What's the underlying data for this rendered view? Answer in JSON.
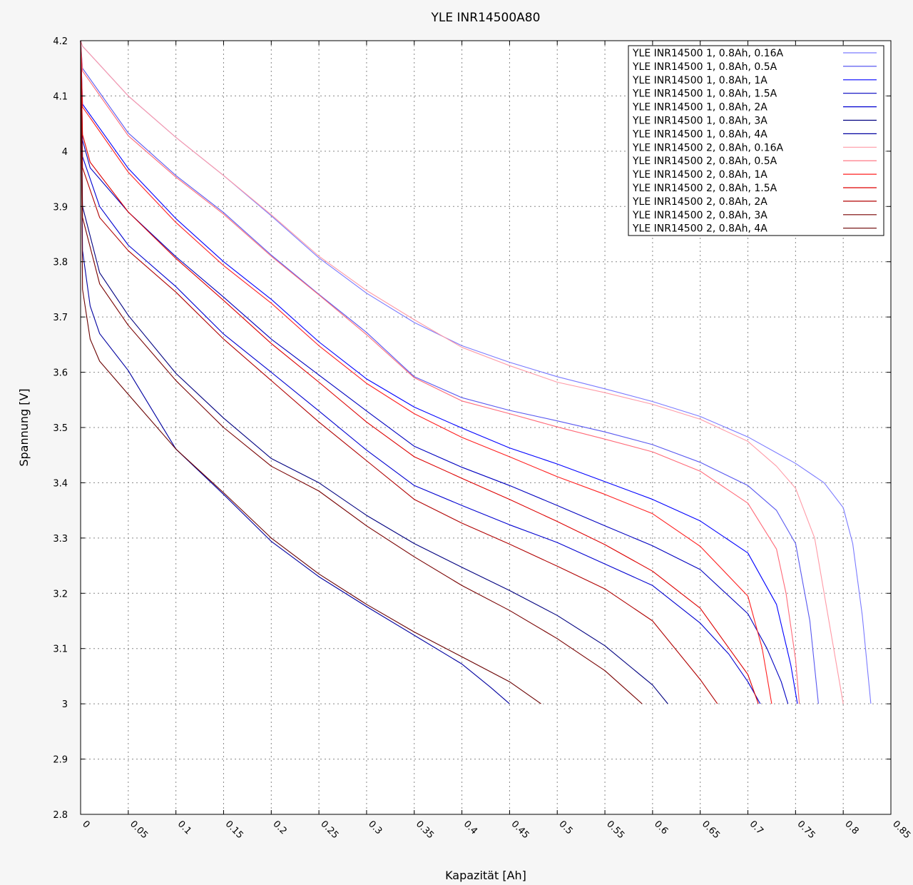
{
  "chart_data": {
    "type": "line",
    "title": "YLE INR14500A80",
    "xlabel": "Kapazität [Ah]",
    "ylabel": "Spannung [V]",
    "xlim": [
      0,
      0.85
    ],
    "ylim": [
      2.8,
      4.2
    ],
    "grid": true,
    "legend_position": "top-right",
    "x_ticks": [
      "0",
      "0.05",
      "0.1",
      "0.15",
      "0.2",
      "0.25",
      "0.3",
      "0.35",
      "0.4",
      "0.45",
      "0.5",
      "0.55",
      "0.6",
      "0.65",
      "0.7",
      "0.75",
      "0.8",
      "0.85"
    ],
    "y_ticks": [
      "2.8",
      "2.9",
      "3",
      "3.1",
      "3.2",
      "3.3",
      "3.4",
      "3.5",
      "3.6",
      "3.7",
      "3.8",
      "3.9",
      "4",
      "4.1",
      "4.2"
    ],
    "series": [
      {
        "name": "YLE INR14500 1, 0.8Ah, 0.16A",
        "color": "#7a7aff",
        "points": [
          [
            0,
            4.2
          ],
          [
            0.002,
            4.19
          ],
          [
            0.05,
            4.1
          ],
          [
            0.1,
            4.025
          ],
          [
            0.15,
            3.956
          ],
          [
            0.2,
            3.883
          ],
          [
            0.25,
            3.807
          ],
          [
            0.3,
            3.743
          ],
          [
            0.35,
            3.69
          ],
          [
            0.4,
            3.648
          ],
          [
            0.45,
            3.618
          ],
          [
            0.5,
            3.592
          ],
          [
            0.55,
            3.57
          ],
          [
            0.6,
            3.547
          ],
          [
            0.65,
            3.52
          ],
          [
            0.7,
            3.483
          ],
          [
            0.75,
            3.435
          ],
          [
            0.78,
            3.4
          ],
          [
            0.8,
            3.355
          ],
          [
            0.81,
            3.29
          ],
          [
            0.82,
            3.16
          ],
          [
            0.829,
            3.0
          ]
        ]
      },
      {
        "name": "YLE INR14500 1, 0.8Ah, 0.5A",
        "color": "#5858f0",
        "points": [
          [
            0,
            4.2
          ],
          [
            0.002,
            4.15
          ],
          [
            0.05,
            4.033
          ],
          [
            0.1,
            3.956
          ],
          [
            0.15,
            3.889
          ],
          [
            0.2,
            3.812
          ],
          [
            0.25,
            3.741
          ],
          [
            0.3,
            3.672
          ],
          [
            0.35,
            3.592
          ],
          [
            0.4,
            3.554
          ],
          [
            0.45,
            3.531
          ],
          [
            0.5,
            3.512
          ],
          [
            0.55,
            3.492
          ],
          [
            0.6,
            3.469
          ],
          [
            0.65,
            3.437
          ],
          [
            0.7,
            3.395
          ],
          [
            0.73,
            3.35
          ],
          [
            0.75,
            3.29
          ],
          [
            0.765,
            3.15
          ],
          [
            0.774,
            3.0
          ]
        ]
      },
      {
        "name": "YLE INR14500 1, 0.8Ah, 1A",
        "color": "#0000ff",
        "points": [
          [
            0,
            4.2
          ],
          [
            0.002,
            4.085
          ],
          [
            0.05,
            3.969
          ],
          [
            0.1,
            3.878
          ],
          [
            0.15,
            3.8
          ],
          [
            0.2,
            3.732
          ],
          [
            0.25,
            3.655
          ],
          [
            0.3,
            3.588
          ],
          [
            0.35,
            3.537
          ],
          [
            0.4,
            3.499
          ],
          [
            0.45,
            3.463
          ],
          [
            0.5,
            3.434
          ],
          [
            0.55,
            3.402
          ],
          [
            0.6,
            3.37
          ],
          [
            0.65,
            3.331
          ],
          [
            0.7,
            3.273
          ],
          [
            0.73,
            3.18
          ],
          [
            0.745,
            3.07
          ],
          [
            0.752,
            3.0
          ]
        ]
      },
      {
        "name": "YLE INR14500 1, 0.8Ah, 1.5A",
        "color": "#0000c0",
        "points": [
          [
            0,
            4.2
          ],
          [
            0.002,
            4.02
          ],
          [
            0.01,
            3.97
          ],
          [
            0.05,
            3.89
          ],
          [
            0.1,
            3.809
          ],
          [
            0.15,
            3.736
          ],
          [
            0.2,
            3.66
          ],
          [
            0.25,
            3.595
          ],
          [
            0.3,
            3.53
          ],
          [
            0.35,
            3.466
          ],
          [
            0.4,
            3.428
          ],
          [
            0.45,
            3.395
          ],
          [
            0.5,
            3.359
          ],
          [
            0.55,
            3.322
          ],
          [
            0.6,
            3.286
          ],
          [
            0.65,
            3.243
          ],
          [
            0.7,
            3.163
          ],
          [
            0.72,
            3.1
          ],
          [
            0.735,
            3.04
          ],
          [
            0.742,
            3.0
          ]
        ]
      },
      {
        "name": "YLE INR14500 1, 0.8Ah, 2A",
        "color": "#0000d0",
        "points": [
          [
            0,
            4.2
          ],
          [
            0.002,
            3.99
          ],
          [
            0.02,
            3.9
          ],
          [
            0.05,
            3.83
          ],
          [
            0.1,
            3.755
          ],
          [
            0.15,
            3.669
          ],
          [
            0.2,
            3.6
          ],
          [
            0.25,
            3.53
          ],
          [
            0.3,
            3.459
          ],
          [
            0.35,
            3.395
          ],
          [
            0.4,
            3.359
          ],
          [
            0.45,
            3.324
          ],
          [
            0.5,
            3.292
          ],
          [
            0.55,
            3.253
          ],
          [
            0.6,
            3.214
          ],
          [
            0.65,
            3.146
          ],
          [
            0.68,
            3.09
          ],
          [
            0.7,
            3.04
          ],
          [
            0.713,
            3.0
          ]
        ]
      },
      {
        "name": "YLE INR14500 1, 0.8Ah, 3A",
        "color": "#000080",
        "points": [
          [
            0,
            4.2
          ],
          [
            0.002,
            3.9
          ],
          [
            0.02,
            3.78
          ],
          [
            0.05,
            3.703
          ],
          [
            0.1,
            3.598
          ],
          [
            0.15,
            3.517
          ],
          [
            0.2,
            3.444
          ],
          [
            0.25,
            3.4
          ],
          [
            0.3,
            3.341
          ],
          [
            0.35,
            3.29
          ],
          [
            0.4,
            3.247
          ],
          [
            0.45,
            3.205
          ],
          [
            0.5,
            3.16
          ],
          [
            0.55,
            3.105
          ],
          [
            0.6,
            3.034
          ],
          [
            0.616,
            3.0
          ]
        ]
      },
      {
        "name": "YLE INR14500 1, 0.8Ah, 4A",
        "color": "#0000a0",
        "points": [
          [
            0,
            4.2
          ],
          [
            0.002,
            3.82
          ],
          [
            0.01,
            3.72
          ],
          [
            0.02,
            3.67
          ],
          [
            0.05,
            3.603
          ],
          [
            0.1,
            3.461
          ],
          [
            0.15,
            3.379
          ],
          [
            0.2,
            3.294
          ],
          [
            0.25,
            3.23
          ],
          [
            0.3,
            3.176
          ],
          [
            0.35,
            3.124
          ],
          [
            0.4,
            3.072
          ],
          [
            0.43,
            3.03
          ],
          [
            0.45,
            3.0
          ]
        ]
      },
      {
        "name": "YLE INR14500 2, 0.8Ah, 0.16A",
        "color": "#ff9aa6",
        "points": [
          [
            0,
            4.2
          ],
          [
            0.002,
            4.19
          ],
          [
            0.05,
            4.1
          ],
          [
            0.1,
            4.025
          ],
          [
            0.15,
            3.956
          ],
          [
            0.2,
            3.885
          ],
          [
            0.25,
            3.81
          ],
          [
            0.3,
            3.748
          ],
          [
            0.35,
            3.695
          ],
          [
            0.4,
            3.645
          ],
          [
            0.45,
            3.612
          ],
          [
            0.5,
            3.582
          ],
          [
            0.55,
            3.563
          ],
          [
            0.6,
            3.542
          ],
          [
            0.65,
            3.515
          ],
          [
            0.7,
            3.475
          ],
          [
            0.73,
            3.43
          ],
          [
            0.75,
            3.39
          ],
          [
            0.77,
            3.3
          ],
          [
            0.785,
            3.15
          ],
          [
            0.8,
            3.0
          ]
        ]
      },
      {
        "name": "YLE INR14500 2, 0.8Ah, 0.5A",
        "color": "#ff6a78",
        "points": [
          [
            0,
            4.2
          ],
          [
            0.002,
            4.145
          ],
          [
            0.05,
            4.028
          ],
          [
            0.1,
            3.953
          ],
          [
            0.15,
            3.886
          ],
          [
            0.2,
            3.81
          ],
          [
            0.25,
            3.74
          ],
          [
            0.3,
            3.668
          ],
          [
            0.35,
            3.59
          ],
          [
            0.4,
            3.548
          ],
          [
            0.45,
            3.525
          ],
          [
            0.5,
            3.501
          ],
          [
            0.55,
            3.479
          ],
          [
            0.6,
            3.456
          ],
          [
            0.65,
            3.421
          ],
          [
            0.7,
            3.363
          ],
          [
            0.73,
            3.28
          ],
          [
            0.74,
            3.2
          ],
          [
            0.75,
            3.08
          ],
          [
            0.754,
            3.0
          ]
        ]
      },
      {
        "name": "YLE INR14500 2, 0.8Ah, 1A",
        "color": "#ff2020",
        "points": [
          [
            0,
            4.2
          ],
          [
            0.002,
            4.08
          ],
          [
            0.05,
            3.962
          ],
          [
            0.1,
            3.871
          ],
          [
            0.15,
            3.793
          ],
          [
            0.2,
            3.725
          ],
          [
            0.25,
            3.648
          ],
          [
            0.3,
            3.58
          ],
          [
            0.35,
            3.525
          ],
          [
            0.4,
            3.482
          ],
          [
            0.45,
            3.447
          ],
          [
            0.5,
            3.411
          ],
          [
            0.55,
            3.379
          ],
          [
            0.6,
            3.344
          ],
          [
            0.65,
            3.285
          ],
          [
            0.7,
            3.195
          ],
          [
            0.715,
            3.1
          ],
          [
            0.725,
            3.0
          ]
        ]
      },
      {
        "name": "YLE INR14500 2, 0.8Ah, 1.5A",
        "color": "#dd0000",
        "points": [
          [
            0,
            4.2
          ],
          [
            0.002,
            4.03
          ],
          [
            0.01,
            3.98
          ],
          [
            0.05,
            3.89
          ],
          [
            0.1,
            3.806
          ],
          [
            0.15,
            3.73
          ],
          [
            0.2,
            3.652
          ],
          [
            0.25,
            3.582
          ],
          [
            0.3,
            3.51
          ],
          [
            0.35,
            3.447
          ],
          [
            0.4,
            3.408
          ],
          [
            0.45,
            3.37
          ],
          [
            0.5,
            3.33
          ],
          [
            0.55,
            3.288
          ],
          [
            0.6,
            3.24
          ],
          [
            0.65,
            3.173
          ],
          [
            0.7,
            3.053
          ],
          [
            0.711,
            3.0
          ]
        ]
      },
      {
        "name": "YLE INR14500 2, 0.8Ah, 2A",
        "color": "#b00000",
        "points": [
          [
            0,
            4.2
          ],
          [
            0.002,
            3.97
          ],
          [
            0.02,
            3.88
          ],
          [
            0.05,
            3.82
          ],
          [
            0.1,
            3.745
          ],
          [
            0.15,
            3.66
          ],
          [
            0.2,
            3.585
          ],
          [
            0.25,
            3.51
          ],
          [
            0.3,
            3.44
          ],
          [
            0.35,
            3.37
          ],
          [
            0.4,
            3.327
          ],
          [
            0.45,
            3.289
          ],
          [
            0.5,
            3.249
          ],
          [
            0.55,
            3.208
          ],
          [
            0.6,
            3.15
          ],
          [
            0.65,
            3.044
          ],
          [
            0.668,
            3.0
          ]
        ]
      },
      {
        "name": "YLE INR14500 2, 0.8Ah, 3A",
        "color": "#780000",
        "points": [
          [
            0,
            4.2
          ],
          [
            0.002,
            3.88
          ],
          [
            0.02,
            3.76
          ],
          [
            0.05,
            3.685
          ],
          [
            0.1,
            3.585
          ],
          [
            0.15,
            3.5
          ],
          [
            0.2,
            3.43
          ],
          [
            0.25,
            3.385
          ],
          [
            0.3,
            3.322
          ],
          [
            0.35,
            3.266
          ],
          [
            0.4,
            3.214
          ],
          [
            0.45,
            3.169
          ],
          [
            0.5,
            3.118
          ],
          [
            0.55,
            3.06
          ],
          [
            0.589,
            3.0
          ]
        ]
      },
      {
        "name": "YLE INR14500 2, 0.8Ah, 4A",
        "color": "#6a0000",
        "points": [
          [
            0,
            4.2
          ],
          [
            0.002,
            3.75
          ],
          [
            0.01,
            3.66
          ],
          [
            0.02,
            3.62
          ],
          [
            0.05,
            3.56
          ],
          [
            0.1,
            3.461
          ],
          [
            0.15,
            3.382
          ],
          [
            0.2,
            3.3
          ],
          [
            0.25,
            3.235
          ],
          [
            0.3,
            3.18
          ],
          [
            0.35,
            3.13
          ],
          [
            0.4,
            3.085
          ],
          [
            0.45,
            3.04
          ],
          [
            0.483,
            3.0
          ]
        ]
      }
    ]
  }
}
